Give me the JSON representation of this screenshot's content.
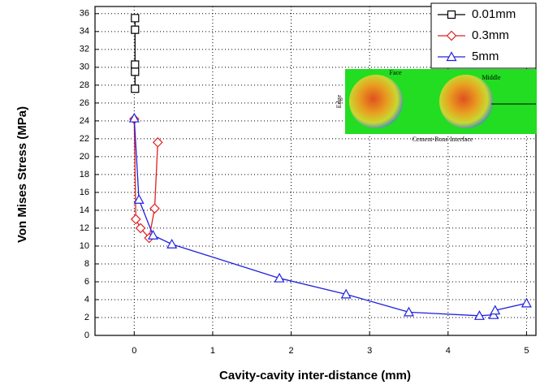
{
  "chart_data": {
    "type": "line",
    "xlabel": "Cavity-cavity inter-distance (mm)",
    "ylabel": "Von Mises Stress (MPa)",
    "xlim": [
      -0.5,
      5.12
    ],
    "ylim": [
      0,
      36.8
    ],
    "xticks": [
      0,
      1,
      2,
      3,
      4,
      5
    ],
    "yticks": [
      0,
      2,
      4,
      6,
      8,
      10,
      12,
      14,
      16,
      18,
      20,
      22,
      24,
      26,
      28,
      30,
      32,
      34,
      36
    ],
    "grid": true,
    "legend": "upper right",
    "series": [
      {
        "name": "0.01mm",
        "color": "#000000",
        "marker": "square",
        "x": [
          0.01,
          0.01,
          0.01,
          0.01,
          0.01
        ],
        "values": [
          35.5,
          34.2,
          30.3,
          29.5,
          27.6
        ]
      },
      {
        "name": "0.3mm",
        "color": "#e02020",
        "marker": "diamond",
        "x": [
          0,
          0.02,
          0.08,
          0.19,
          0.26,
          0.3
        ],
        "values": [
          24.2,
          13.0,
          12.0,
          10.9,
          14.2,
          21.6
        ]
      },
      {
        "name": "5mm",
        "color": "#2020e0",
        "marker": "triangle",
        "x": [
          0,
          0.06,
          0.24,
          0.48,
          1.85,
          2.7,
          3.5,
          4.4,
          4.58,
          4.6,
          5.0
        ],
        "values": [
          24.3,
          15.2,
          11.2,
          10.2,
          6.4,
          4.6,
          2.6,
          2.2,
          2.3,
          2.8,
          3.6
        ]
      }
    ],
    "annotations": [
      "Face",
      "Middle",
      "Edge",
      "Cement-Bone Interface"
    ]
  }
}
